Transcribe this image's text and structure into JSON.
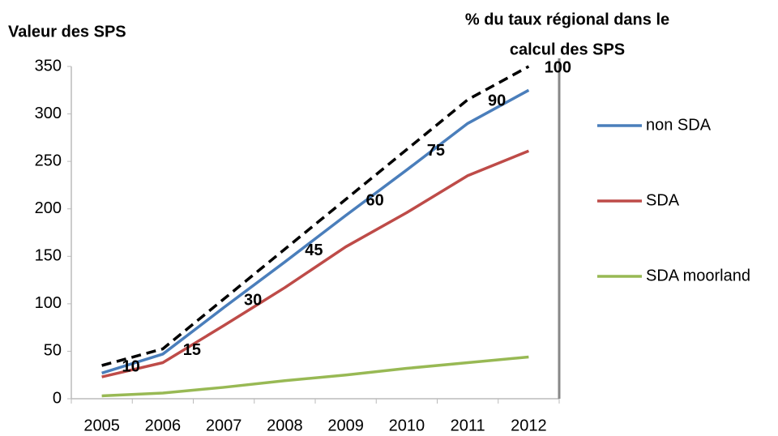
{
  "chart_data": {
    "type": "line",
    "y_label": "Valeur des SPS",
    "y2_label": [
      "% du taux régional dans le",
      "calcul des SPS"
    ],
    "categories": [
      "2005",
      "2006",
      "2007",
      "2008",
      "2009",
      "2010",
      "2011",
      "2012"
    ],
    "ylim": [
      0,
      350
    ],
    "yticks": [
      0,
      50,
      100,
      150,
      200,
      250,
      300,
      350
    ],
    "y2lim": [
      0,
      100
    ],
    "grid": false,
    "legend": "right",
    "series": [
      {
        "name": "non SDA",
        "color": "#4a7ebb",
        "values": [
          27,
          47,
          96,
          144,
          193,
          241,
          290,
          325
        ]
      },
      {
        "name": "SDA",
        "color": "#be4b48",
        "values": [
          23,
          38,
          77,
          117,
          160,
          196,
          235,
          261
        ]
      },
      {
        "name": "SDA moorland",
        "color": "#98b954",
        "values": [
          3,
          6,
          12,
          19,
          25,
          32,
          38,
          44
        ]
      },
      {
        "color": "#000000",
        "dash": true,
        "axis": "y2",
        "data_labels": true,
        "values": [
          10,
          15,
          30,
          45,
          60,
          75,
          90,
          100
        ]
      }
    ]
  }
}
